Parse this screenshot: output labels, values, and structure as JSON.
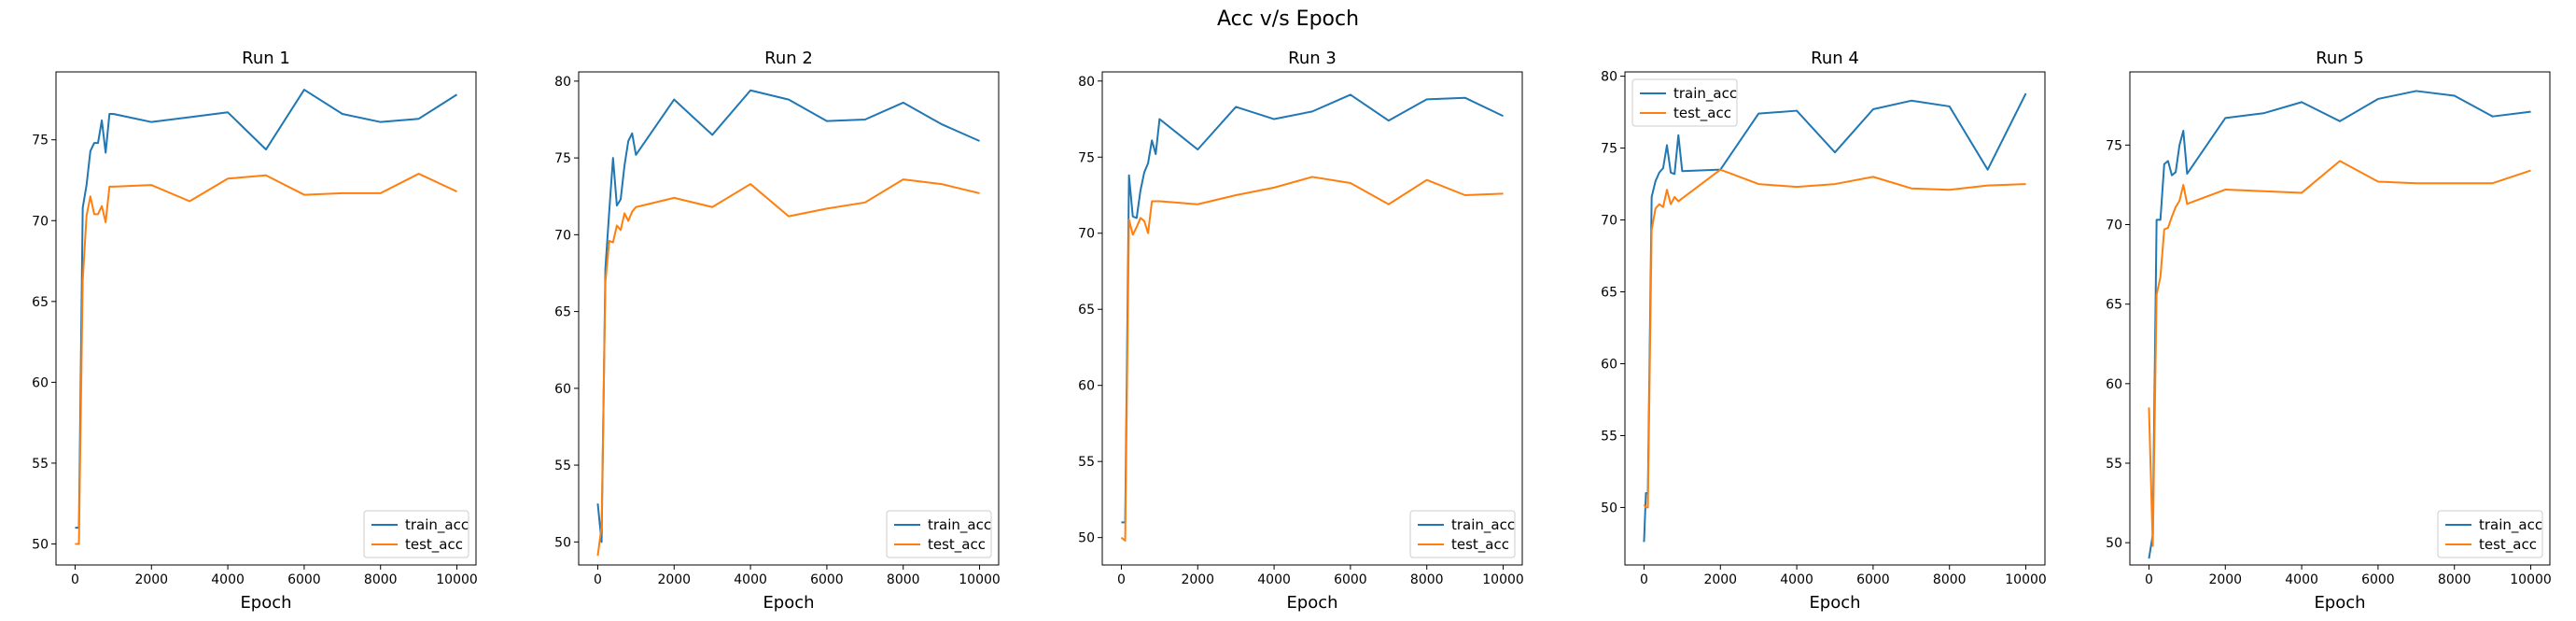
{
  "chart_data": {
    "suptitle": "Acc v/s Epoch",
    "type": "line",
    "colors": {
      "train_acc": "#1f77b4",
      "test_acc": "#ff7f0e"
    },
    "charts": [
      {
        "title": "Run 1",
        "xlabel": "Epoch",
        "ylabel": "",
        "xlim": [
          -500,
          10500
        ],
        "ylim": [
          48.7,
          79.2
        ],
        "xticks": [
          0,
          2000,
          4000,
          6000,
          8000,
          10000
        ],
        "yticks": [
          50,
          55,
          60,
          65,
          70,
          75
        ],
        "legend": "lower-right",
        "series": [
          {
            "name": "train_acc",
            "x": [
              0,
              100,
              200,
              300,
              400,
              500,
              600,
              700,
              800,
              900,
              1000,
              2000,
              3000,
              4000,
              5000,
              6000,
              7000,
              8000,
              9000,
              10000
            ],
            "y": [
              51.0,
              51.0,
              70.8,
              72.2,
              74.3,
              74.8,
              74.8,
              76.2,
              74.2,
              76.6,
              76.6,
              76.1,
              76.4,
              76.7,
              74.4,
              78.1,
              76.6,
              76.1,
              76.3,
              77.8
            ]
          },
          {
            "name": "test_acc",
            "x": [
              0,
              100,
              200,
              300,
              400,
              500,
              600,
              700,
              800,
              900,
              1000,
              2000,
              3000,
              4000,
              5000,
              6000,
              7000,
              8000,
              9000,
              10000
            ],
            "y": [
              50.0,
              50.0,
              66.3,
              70.3,
              71.5,
              70.4,
              70.4,
              70.9,
              69.9,
              72.1,
              72.1,
              72.2,
              71.2,
              72.6,
              72.8,
              71.6,
              71.7,
              71.7,
              72.9,
              71.8
            ]
          }
        ]
      },
      {
        "title": "Run 2",
        "xlabel": "Epoch",
        "ylabel": "",
        "xlim": [
          -500,
          10500
        ],
        "ylim": [
          48.5,
          80.6
        ],
        "xticks": [
          0,
          2000,
          4000,
          6000,
          8000,
          10000
        ],
        "yticks": [
          50,
          55,
          60,
          65,
          70,
          75,
          80
        ],
        "legend": "lower-right",
        "series": [
          {
            "name": "train_acc",
            "x": [
              0,
              100,
              200,
              300,
              400,
              500,
              600,
              700,
              800,
              900,
              1000,
              2000,
              3000,
              4000,
              5000,
              6000,
              7000,
              8000,
              9000,
              10000
            ],
            "y": [
              52.5,
              50.0,
              67.8,
              71.5,
              75.0,
              71.9,
              72.3,
              74.5,
              76.1,
              76.6,
              75.2,
              78.8,
              76.5,
              79.4,
              78.8,
              77.4,
              77.5,
              78.6,
              77.2,
              76.1
            ]
          },
          {
            "name": "test_acc",
            "x": [
              0,
              100,
              200,
              300,
              400,
              500,
              600,
              700,
              800,
              900,
              1000,
              2000,
              3000,
              4000,
              5000,
              6000,
              7000,
              8000,
              9000,
              10000
            ],
            "y": [
              49.1,
              51.0,
              66.9,
              69.6,
              69.5,
              70.6,
              70.3,
              71.4,
              70.9,
              71.5,
              71.8,
              72.4,
              71.8,
              73.3,
              71.2,
              71.7,
              72.1,
              73.6,
              73.3,
              72.7
            ]
          }
        ]
      },
      {
        "title": "Run 3",
        "xlabel": "Epoch",
        "ylabel": "",
        "xlim": [
          -500,
          10500
        ],
        "ylim": [
          48.2,
          80.6
        ],
        "xticks": [
          0,
          2000,
          4000,
          6000,
          8000,
          10000
        ],
        "yticks": [
          50,
          55,
          60,
          65,
          70,
          75,
          80
        ],
        "legend": "lower-right",
        "series": [
          {
            "name": "train_acc",
            "x": [
              0,
              100,
              200,
              300,
              400,
              500,
              600,
              700,
              800,
              900,
              1000,
              2000,
              3000,
              4000,
              5000,
              6000,
              7000,
              8000,
              9000,
              10000
            ],
            "y": [
              51.0,
              51.0,
              73.8,
              71.1,
              71.0,
              72.8,
              74.0,
              74.6,
              76.1,
              75.2,
              77.5,
              75.5,
              78.3,
              77.5,
              78.0,
              79.1,
              77.4,
              78.8,
              78.9,
              77.7
            ]
          },
          {
            "name": "test_acc",
            "x": [
              0,
              100,
              200,
              300,
              400,
              500,
              600,
              700,
              800,
              900,
              1000,
              2000,
              3000,
              4000,
              5000,
              6000,
              7000,
              8000,
              9000,
              10000
            ],
            "y": [
              50.0,
              49.8,
              70.9,
              69.9,
              70.4,
              71.0,
              70.8,
              70.0,
              72.1,
              72.1,
              72.1,
              71.9,
              72.5,
              73.0,
              73.7,
              73.3,
              71.9,
              73.5,
              72.5,
              72.6
            ]
          }
        ]
      },
      {
        "title": "Run 4",
        "xlabel": "Epoch",
        "ylabel": "",
        "xlim": [
          -500,
          10500
        ],
        "ylim": [
          46.0,
          80.3
        ],
        "xticks": [
          0,
          2000,
          4000,
          6000,
          8000,
          10000
        ],
        "yticks": [
          50,
          55,
          60,
          65,
          70,
          75,
          80
        ],
        "legend": "upper-left",
        "series": [
          {
            "name": "train_acc",
            "x": [
              0,
              50,
              100,
              200,
              300,
              400,
              500,
              600,
              700,
              800,
              900,
              1000,
              2000,
              3000,
              4000,
              5000,
              6000,
              7000,
              8000,
              9000,
              10000
            ],
            "y": [
              47.6,
              51.0,
              51.0,
              71.6,
              72.7,
              73.3,
              73.6,
              75.2,
              73.3,
              73.2,
              75.9,
              73.4,
              73.5,
              77.4,
              77.6,
              74.7,
              77.7,
              78.3,
              77.9,
              73.5,
              78.8
            ]
          },
          {
            "name": "test_acc",
            "x": [
              0,
              50,
              100,
              200,
              300,
              400,
              500,
              600,
              700,
              800,
              900,
              1000,
              2000,
              3000,
              4000,
              5000,
              6000,
              7000,
              8000,
              9000,
              10000
            ],
            "y": [
              50.2,
              50.0,
              50.0,
              69.3,
              70.8,
              71.1,
              70.9,
              72.1,
              71.1,
              71.6,
              71.3,
              71.5,
              73.5,
              72.5,
              72.3,
              72.5,
              73.0,
              72.2,
              72.1,
              72.4,
              72.5
            ]
          }
        ]
      },
      {
        "title": "Run 5",
        "xlabel": "Epoch",
        "ylabel": "",
        "xlim": [
          -500,
          10500
        ],
        "ylim": [
          48.6,
          79.6
        ],
        "xticks": [
          0,
          2000,
          4000,
          6000,
          8000,
          10000
        ],
        "yticks": [
          50,
          55,
          60,
          65,
          70,
          75
        ],
        "legend": "lower-right",
        "series": [
          {
            "name": "train_acc",
            "x": [
              0,
              100,
              200,
              300,
              400,
              500,
              600,
              700,
              800,
              900,
              1000,
              2000,
              3000,
              4000,
              5000,
              6000,
              7000,
              8000,
              9000,
              10000
            ],
            "y": [
              49.0,
              50.5,
              70.3,
              70.3,
              73.8,
              74.0,
              73.1,
              73.3,
              75.0,
              75.9,
              73.2,
              76.7,
              77.0,
              77.7,
              76.5,
              77.9,
              78.4,
              78.1,
              76.8,
              77.1
            ]
          },
          {
            "name": "test_acc",
            "x": [
              0,
              100,
              200,
              300,
              400,
              500,
              600,
              700,
              800,
              900,
              1000,
              2000,
              3000,
              4000,
              5000,
              6000,
              7000,
              8000,
              9000,
              10000
            ],
            "y": [
              58.5,
              49.8,
              65.6,
              66.7,
              69.7,
              69.8,
              70.5,
              71.1,
              71.5,
              72.5,
              71.3,
              72.2,
              72.1,
              72.0,
              74.0,
              72.7,
              72.6,
              72.6,
              72.6,
              73.4
            ]
          }
        ]
      }
    ]
  }
}
